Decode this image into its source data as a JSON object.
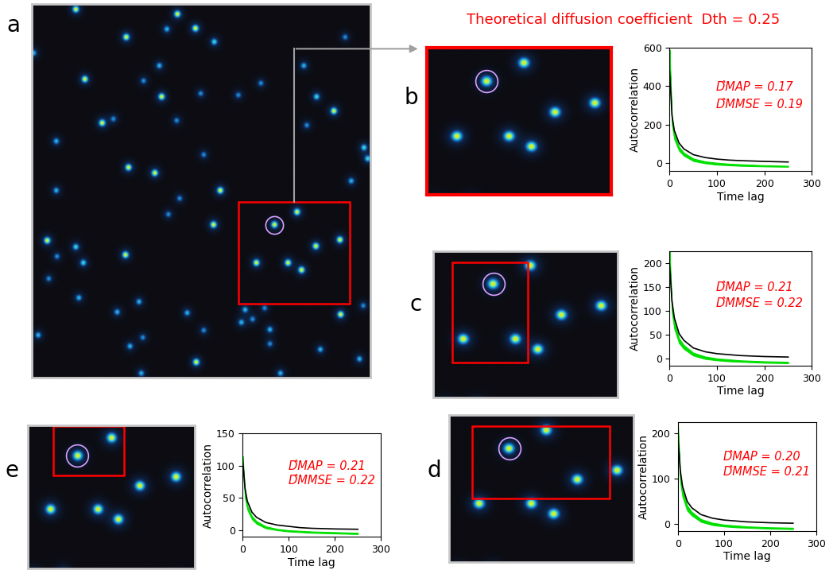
{
  "title": {
    "text": "Theoretical diffusion coefficient  Dth = 0.25",
    "color": "#ff0000"
  },
  "image": {
    "spots": {
      "x": [
        58,
        193,
        217,
        179,
        125,
        242,
        169,
        2,
        70,
        148,
        172,
        93,
        108,
        224,
        274,
        304,
        361,
        416,
        378,
        401,
        365,
        192,
        32,
        128,
        163,
        228,
        441,
        446,
        424,
        409,
        377,
        352,
        322,
        298,
        340,
        358,
        250,
        196,
        241,
        181,
        32,
        20,
        58,
        68,
        33,
        22,
        62,
        124,
        142,
        113,
        206,
        228,
        283,
        293,
        278,
        309,
        316,
        316,
        383,
        410,
        440,
        435,
        8,
        130,
        147,
        218,
        145,
        330
      ],
      "y": [
        7,
        13,
        31,
        32,
        42,
        48,
        78,
        62,
        95,
        97,
        117,
        150,
        145,
        113,
        115,
        100,
        78,
        42,
        117,
        135,
        153,
        147,
        173,
        206,
        213,
        190,
        181,
        195,
        223,
        297,
        305,
        262,
        278,
        326,
        326,
        335,
        235,
        245,
        278,
        265,
        235,
        298,
        306,
        326,
        318,
        346,
        370,
        316,
        375,
        388,
        389,
        411,
        385,
        397,
        401,
        383,
        428,
        410,
        435,
        391,
        380,
        447,
        417,
        431,
        420,
        451,
        465,
        465
      ],
      "intensity": [
        1,
        1,
        1,
        0.6,
        1,
        0.7,
        0.6,
        0.6,
        1,
        0.5,
        1,
        1,
        0.5,
        0.5,
        0.5,
        0.5,
        0.6,
        0.5,
        0.7,
        1,
        0.5,
        0.5,
        0.6,
        1,
        1,
        0.5,
        0.7,
        0.7,
        0.6,
        1,
        1,
        1,
        1,
        1,
        1,
        1,
        1,
        0.5,
        1,
        0.5,
        0.6,
        1,
        0.7,
        0.7,
        0.5,
        0.5,
        0.6,
        1,
        0.6,
        0.6,
        0.6,
        0.5,
        0.6,
        0.5,
        0.6,
        0.5,
        0.5,
        0.6,
        0.6,
        1,
        0.5,
        0.6,
        0.6,
        0.6,
        0.5,
        1,
        0.6,
        0.6
      ]
    },
    "circled": [
      322,
      278
    ]
  },
  "panels": [
    {
      "letter": "a",
      "region": [
        0,
        450,
        0,
        470
      ],
      "roi": [
        274,
        422,
        249,
        377
      ]
    },
    {
      "letter": "b",
      "region": [
        274,
        422,
        249,
        377
      ],
      "color": "#ff0000"
    },
    {
      "letter": "c",
      "region": [
        274,
        422,
        249,
        377
      ],
      "roi": [
        289,
        350,
        259,
        346
      ]
    },
    {
      "letter": "d",
      "region": [
        274,
        422,
        249,
        377
      ],
      "roi": [
        292,
        403,
        259,
        322
      ]
    },
    {
      "letter": "e",
      "region": [
        278,
        426,
        251,
        379
      ],
      "roi": [
        301,
        363,
        252,
        296
      ]
    }
  ],
  "chart_data": [
    {
      "panel": "b",
      "type": "line",
      "xlabel": "Time lag",
      "ylabel": "Autocorrelation",
      "x": [
        0,
        5,
        10,
        20,
        30,
        50,
        75,
        100,
        125,
        150,
        200,
        250
      ],
      "xlim": [
        0,
        300
      ],
      "xticks": [
        0,
        100,
        200,
        300
      ],
      "ylim": [
        -40,
        600
      ],
      "yticks": [
        0,
        200,
        400,
        600
      ],
      "series": [
        {
          "type": "band",
          "color": "#00e000",
          "lower": [
            540,
            200,
            125,
            65,
            40,
            12,
            0,
            -7,
            -10,
            -13,
            -16,
            -18
          ],
          "upper": [
            590,
            230,
            150,
            85,
            55,
            25,
            10,
            3,
            -2,
            -5,
            -10,
            -13
          ]
        },
        {
          "type": "line",
          "color": "#000000",
          "values": [
            480,
            250,
            170,
            105,
            75,
            45,
            30,
            22,
            17,
            14,
            10,
            7
          ]
        }
      ],
      "annotations": [
        {
          "text": "D̂MAP = 0.17",
          "color": "#ff0000"
        },
        {
          "text": "D̂MMSE = 0.19",
          "color": "#ff0000"
        }
      ]
    },
    {
      "panel": "c",
      "type": "line",
      "xlabel": "Time lag",
      "ylabel": "Autocorrelation",
      "x": [
        0,
        5,
        10,
        20,
        30,
        50,
        75,
        100,
        125,
        150,
        200,
        250
      ],
      "xlim": [
        0,
        300
      ],
      "xticks": [
        0,
        100,
        200,
        300
      ],
      "ylim": [
        -15,
        225
      ],
      "yticks": [
        0,
        50,
        100,
        150,
        200
      ],
      "series": [
        {
          "type": "band",
          "color": "#00e000",
          "lower": [
            205,
            95,
            62,
            32,
            20,
            6,
            -1,
            -4,
            -6,
            -7,
            -9,
            -10
          ],
          "upper": [
            225,
            110,
            75,
            42,
            28,
            12,
            4,
            0,
            -2,
            -4,
            -6,
            -7
          ]
        },
        {
          "type": "line",
          "color": "#000000",
          "values": [
            195,
            120,
            85,
            52,
            38,
            22,
            14,
            10,
            8,
            6,
            4,
            3
          ]
        }
      ],
      "annotations": [
        {
          "text": "D̂MAP = 0.21",
          "color": "#ff0000"
        },
        {
          "text": "D̂MMSE = 0.22",
          "color": "#ff0000"
        }
      ]
    },
    {
      "panel": "d",
      "type": "line",
      "xlabel": "Time lag",
      "ylabel": "Autocorrelation",
      "x": [
        0,
        5,
        10,
        20,
        30,
        50,
        75,
        100,
        125,
        150,
        200,
        250
      ],
      "xlim": [
        0,
        300
      ],
      "xticks": [
        0,
        100,
        200,
        300
      ],
      "ylim": [
        -15,
        225
      ],
      "yticks": [
        0,
        100,
        200
      ],
      "series": [
        {
          "type": "band",
          "color": "#00e000",
          "lower": [
            200,
            92,
            60,
            30,
            19,
            5,
            -2,
            -5,
            -7,
            -8,
            -10,
            -11
          ],
          "upper": [
            220,
            108,
            73,
            41,
            27,
            11,
            3,
            -1,
            -3,
            -5,
            -7,
            -8
          ]
        },
        {
          "type": "line",
          "color": "#000000",
          "values": [
            192,
            118,
            83,
            50,
            36,
            21,
            13,
            9,
            7,
            5,
            3,
            2
          ]
        }
      ],
      "annotations": [
        {
          "text": "D̂MAP = 0.20",
          "color": "#ff0000"
        },
        {
          "text": "D̂MMSE = 0.21",
          "color": "#ff0000"
        }
      ]
    },
    {
      "panel": "e",
      "type": "line",
      "xlabel": "Time lag",
      "ylabel": "Autocorrelation",
      "x": [
        0,
        5,
        10,
        20,
        30,
        50,
        75,
        100,
        125,
        150,
        200,
        250
      ],
      "xlim": [
        0,
        300
      ],
      "xticks": [
        0,
        100,
        200,
        300
      ],
      "ylim": [
        -10,
        150
      ],
      "yticks": [
        0,
        50,
        100,
        150
      ],
      "series": [
        {
          "type": "band",
          "color": "#00e000",
          "lower": [
            105,
            50,
            32,
            17,
            10,
            3,
            0,
            -2,
            -3,
            -4,
            -5,
            -6
          ],
          "upper": [
            115,
            58,
            38,
            22,
            14,
            6,
            2,
            0,
            -1,
            -2,
            -3,
            -4
          ]
        },
        {
          "type": "line",
          "color": "#000000",
          "values": [
            108,
            65,
            45,
            28,
            20,
            12,
            8,
            6,
            4,
            3,
            2,
            1.5
          ]
        }
      ],
      "annotations": [
        {
          "text": "D̂MAP = 0.21",
          "color": "#ff0000"
        },
        {
          "text": "D̂MMSE = 0.22",
          "color": "#ff0000"
        }
      ]
    }
  ]
}
